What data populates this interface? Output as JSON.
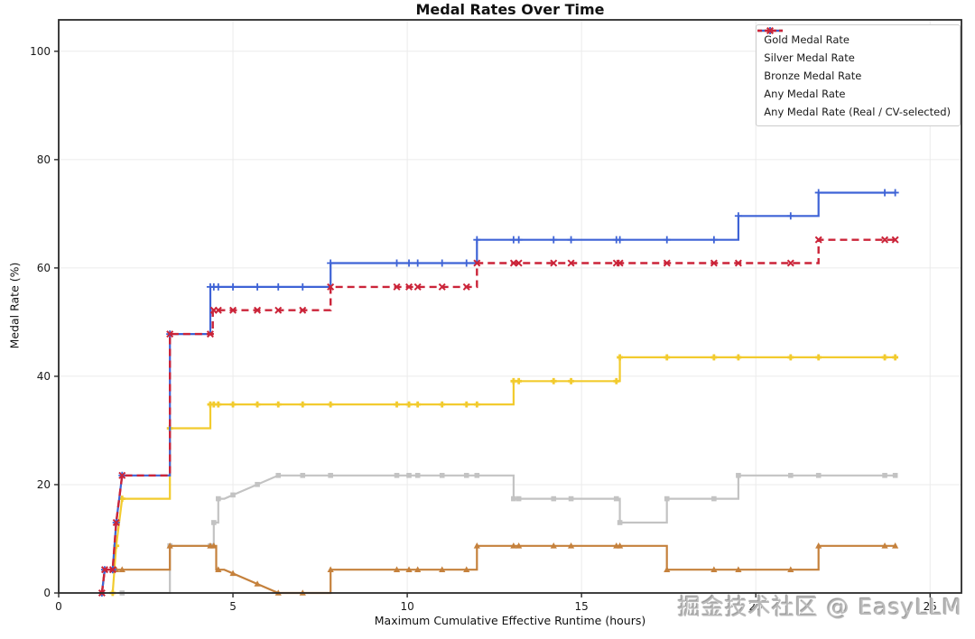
{
  "watermark": "掘金技术社区 @ EasyLLM",
  "chart_data": {
    "type": "line",
    "step_style": "post",
    "title": "Medal Rates Over Time",
    "xlabel": "Maximum Cumulative Effective Runtime (hours)",
    "ylabel": "Medal Rate (%)",
    "xlim": [
      0,
      25.9
    ],
    "ylim": [
      0,
      105.8
    ],
    "xticks": [
      0,
      5,
      10,
      15,
      20,
      25
    ],
    "yticks": [
      0,
      20,
      40,
      60,
      80,
      100
    ],
    "grid": true,
    "legend_position": "upper right",
    "marker_x": [
      1.24,
      1.32,
      1.55,
      1.65,
      1.82,
      3.19,
      4.35,
      4.45,
      4.58,
      5.0,
      5.7,
      6.3,
      7.0,
      7.8,
      9.7,
      10.05,
      10.3,
      11.0,
      11.7,
      12.0,
      13.05,
      13.2,
      14.2,
      14.7,
      16.0,
      16.1,
      17.45,
      18.8,
      19.5,
      21.0,
      21.8,
      23.7,
      24.0
    ],
    "series": [
      {
        "id": "gold",
        "name": "Gold Medal Rate",
        "color": "#F2CB2E",
        "dash": null,
        "marker": "plus-bold",
        "width": 2.2,
        "points": [
          [
            1.55,
            0
          ],
          [
            1.65,
            8.7
          ],
          [
            1.82,
            17.4
          ],
          [
            3.19,
            17.4
          ],
          [
            3.19,
            30.4
          ],
          [
            4.35,
            30.4
          ],
          [
            4.35,
            34.8
          ],
          [
            13.05,
            34.8
          ],
          [
            13.05,
            39.1
          ],
          [
            16.1,
            39.1
          ],
          [
            16.1,
            43.5
          ],
          [
            24.0,
            43.5
          ]
        ]
      },
      {
        "id": "silver",
        "name": "Silver Medal Rate",
        "color": "#C3C3C3",
        "dash": null,
        "marker": "square",
        "width": 2.2,
        "points": [
          [
            1.7,
            0
          ],
          [
            3.19,
            0
          ],
          [
            3.19,
            8.7
          ],
          [
            4.45,
            8.7
          ],
          [
            4.45,
            13.0
          ],
          [
            4.58,
            13.0
          ],
          [
            4.58,
            17.4
          ],
          [
            4.75,
            17.4
          ],
          [
            6.3,
            21.7
          ],
          [
            13.05,
            21.7
          ],
          [
            13.05,
            17.4
          ],
          [
            16.1,
            17.4
          ],
          [
            16.1,
            13.0
          ],
          [
            17.45,
            13.0
          ],
          [
            17.45,
            17.4
          ],
          [
            19.5,
            17.4
          ],
          [
            19.5,
            21.7
          ],
          [
            24.0,
            21.7
          ]
        ]
      },
      {
        "id": "bronze",
        "name": "Bronze Medal Rate",
        "color": "#C5813C",
        "dash": null,
        "marker": "triangle",
        "width": 2.2,
        "points": [
          [
            1.24,
            0
          ],
          [
            1.32,
            4.3
          ],
          [
            3.19,
            4.3
          ],
          [
            3.19,
            8.7
          ],
          [
            4.52,
            8.7
          ],
          [
            4.52,
            4.3
          ],
          [
            4.75,
            4.3
          ],
          [
            6.3,
            0
          ],
          [
            7.8,
            0
          ],
          [
            7.8,
            4.3
          ],
          [
            12.0,
            4.3
          ],
          [
            12.0,
            8.7
          ],
          [
            17.45,
            8.7
          ],
          [
            17.45,
            4.3
          ],
          [
            21.8,
            4.3
          ],
          [
            21.8,
            8.7
          ],
          [
            24.0,
            8.7
          ]
        ]
      },
      {
        "id": "any",
        "name": "Any Medal Rate",
        "color": "#3E63D6",
        "dash": null,
        "marker": "plus",
        "width": 2.2,
        "points": [
          [
            1.24,
            0
          ],
          [
            1.32,
            4.3
          ],
          [
            1.55,
            4.3
          ],
          [
            1.65,
            13.0
          ],
          [
            1.82,
            21.7
          ],
          [
            3.19,
            21.7
          ],
          [
            3.19,
            47.8
          ],
          [
            4.35,
            47.8
          ],
          [
            4.35,
            56.5
          ],
          [
            7.8,
            56.5
          ],
          [
            7.8,
            60.9
          ],
          [
            12.0,
            60.9
          ],
          [
            12.0,
            65.2
          ],
          [
            19.5,
            65.2
          ],
          [
            19.5,
            69.6
          ],
          [
            21.8,
            69.6
          ],
          [
            21.8,
            73.9
          ],
          [
            24.0,
            73.9
          ]
        ]
      },
      {
        "id": "any_real",
        "name": "Any Medal Rate (Real / CV-selected)",
        "color": "#CB2439",
        "dash": "8 5",
        "marker": "x",
        "width": 2.4,
        "points": [
          [
            1.24,
            0
          ],
          [
            1.32,
            4.3
          ],
          [
            1.55,
            4.3
          ],
          [
            1.65,
            13.0
          ],
          [
            1.82,
            21.7
          ],
          [
            3.19,
            21.7
          ],
          [
            3.19,
            47.8
          ],
          [
            4.42,
            47.8
          ],
          [
            4.42,
            52.2
          ],
          [
            7.8,
            52.2
          ],
          [
            7.8,
            56.5
          ],
          [
            12.0,
            56.5
          ],
          [
            12.0,
            60.9
          ],
          [
            21.8,
            60.9
          ],
          [
            21.8,
            65.2
          ],
          [
            24.0,
            65.2
          ]
        ]
      }
    ]
  }
}
